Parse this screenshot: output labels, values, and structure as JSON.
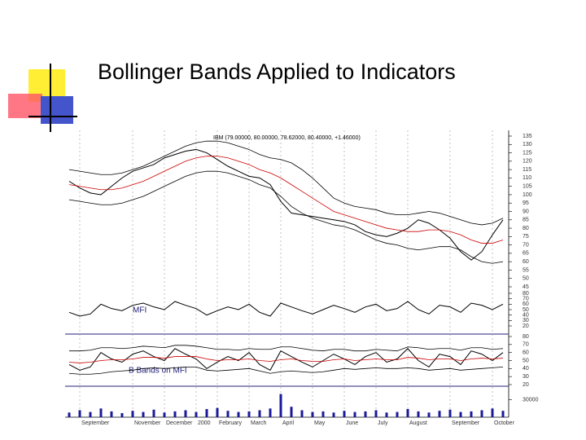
{
  "slide": {
    "title": "Bollinger Bands Applied to Indicators"
  },
  "chart_data": [
    {
      "type": "line",
      "annotation": "IBM (79.00000, 80.00000, 78.62000, 80.40000, +1.46000)",
      "categories": [
        null,
        "September",
        null,
        null,
        null,
        null,
        "November",
        null,
        null,
        "December",
        null,
        null,
        "2000",
        null,
        "February",
        null,
        null,
        "March",
        null,
        null,
        "April",
        null,
        null,
        "May",
        null,
        null,
        "June",
        null,
        null,
        "July",
        null,
        null,
        "August",
        null,
        null,
        null,
        "September",
        null,
        null,
        null,
        "October",
        null
      ],
      "ylim": [
        45,
        135
      ],
      "yticks": [
        135,
        130,
        125,
        120,
        115,
        110,
        105,
        100,
        95,
        90,
        85,
        80,
        75,
        70,
        65,
        60,
        55,
        50,
        45
      ],
      "series": [
        {
          "color": "#000000",
          "values": [
            108,
            104,
            101,
            100,
            105,
            110,
            114,
            116,
            118,
            122,
            124,
            126,
            127,
            125,
            121,
            117,
            114,
            111,
            110,
            106,
            96,
            89,
            88,
            87,
            86,
            85,
            84,
            82,
            78,
            76,
            75,
            77,
            80,
            85,
            83,
            79,
            74,
            66,
            61,
            66,
            76,
            85
          ]
        },
        {
          "color": "#000000",
          "values": [
            115,
            114,
            113,
            112,
            112,
            113,
            115,
            117,
            120,
            123,
            126,
            129,
            131,
            132,
            132,
            131,
            129,
            127,
            124,
            122,
            121,
            119,
            115,
            110,
            104,
            98,
            95,
            93,
            92,
            91,
            89,
            88,
            88,
            89,
            90,
            89,
            87,
            85,
            83,
            82,
            83,
            86
          ]
        },
        {
          "color": "#cc0000",
          "values": [
            106,
            105,
            104,
            103,
            103,
            104,
            106,
            108,
            111,
            114,
            117,
            120,
            122,
            123,
            123,
            122,
            120,
            118,
            115,
            113,
            110,
            106,
            102,
            98,
            94,
            90,
            88,
            86,
            84,
            82,
            80,
            79,
            78,
            78,
            79,
            79,
            78,
            76,
            73,
            71,
            71,
            73
          ]
        },
        {
          "color": "#000000",
          "values": [
            97,
            96,
            95,
            94,
            94,
            95,
            97,
            99,
            102,
            105,
            108,
            111,
            113,
            114,
            114,
            113,
            111,
            109,
            106,
            104,
            99,
            93,
            89,
            86,
            84,
            82,
            81,
            79,
            76,
            73,
            71,
            70,
            68,
            67,
            68,
            69,
            69,
            67,
            63,
            60,
            59,
            60
          ]
        }
      ]
    },
    {
      "type": "line",
      "annotation": "MFI",
      "ylim": [
        20,
        80
      ],
      "yticks": [
        80,
        70,
        60,
        50,
        40,
        30,
        20
      ],
      "series": [
        {
          "color": "#000000",
          "values": [
            45,
            38,
            42,
            60,
            52,
            48,
            58,
            62,
            55,
            50,
            65,
            58,
            52,
            40,
            48,
            55,
            50,
            60,
            45,
            38,
            62,
            55,
            48,
            42,
            50,
            58,
            52,
            45,
            55,
            60,
            48,
            52,
            65,
            50,
            42,
            58,
            55,
            45,
            62,
            58,
            50,
            60
          ]
        }
      ]
    },
    {
      "type": "line",
      "annotation": "B Bands on MFI",
      "ylim": [
        20,
        80
      ],
      "yticks": [
        80,
        70,
        60,
        50,
        40,
        30,
        20
      ],
      "series": [
        {
          "color": "#000000",
          "values": [
            45,
            38,
            42,
            60,
            52,
            48,
            58,
            62,
            55,
            50,
            65,
            58,
            52,
            40,
            48,
            55,
            50,
            60,
            45,
            38,
            62,
            55,
            48,
            42,
            50,
            58,
            52,
            45,
            55,
            60,
            48,
            52,
            65,
            50,
            42,
            58,
            55,
            45,
            62,
            58,
            50,
            60
          ]
        },
        {
          "color": "#000000",
          "values": [
            62,
            62,
            63,
            66,
            66,
            65,
            66,
            68,
            67,
            66,
            69,
            69,
            68,
            66,
            64,
            64,
            63,
            65,
            64,
            64,
            67,
            67,
            65,
            63,
            62,
            64,
            64,
            62,
            62,
            64,
            63,
            62,
            67,
            66,
            64,
            65,
            65,
            63,
            66,
            66,
            64,
            65
          ]
        },
        {
          "color": "#cc0000",
          "values": [
            48,
            47,
            48,
            50,
            51,
            51,
            52,
            54,
            54,
            53,
            55,
            55,
            55,
            52,
            50,
            51,
            51,
            52,
            50,
            49,
            51,
            52,
            50,
            49,
            49,
            51,
            52,
            50,
            51,
            52,
            51,
            51,
            54,
            53,
            51,
            52,
            52,
            50,
            52,
            53,
            52,
            53
          ]
        },
        {
          "color": "#000000",
          "values": [
            34,
            33,
            33,
            34,
            36,
            37,
            38,
            40,
            41,
            40,
            41,
            42,
            42,
            38,
            37,
            38,
            39,
            40,
            37,
            34,
            36,
            37,
            36,
            35,
            36,
            38,
            40,
            39,
            40,
            41,
            40,
            40,
            41,
            40,
            38,
            39,
            40,
            38,
            39,
            40,
            41,
            42
          ]
        }
      ]
    },
    {
      "type": "bar",
      "color": "#1a1a99",
      "ylim": [
        0,
        45000
      ],
      "yticks": [
        30000
      ],
      "values": [
        8000,
        12000,
        9000,
        15000,
        10000,
        7000,
        11000,
        9000,
        13000,
        8000,
        10000,
        12000,
        9000,
        14000,
        16000,
        11000,
        9000,
        10000,
        12000,
        15000,
        40000,
        18000,
        12000,
        9000,
        10000,
        8000,
        11000,
        9000,
        10000,
        12000,
        8000,
        9000,
        14000,
        10000,
        8000,
        11000,
        13000,
        9000,
        10000,
        12000,
        15000,
        11000
      ]
    }
  ]
}
